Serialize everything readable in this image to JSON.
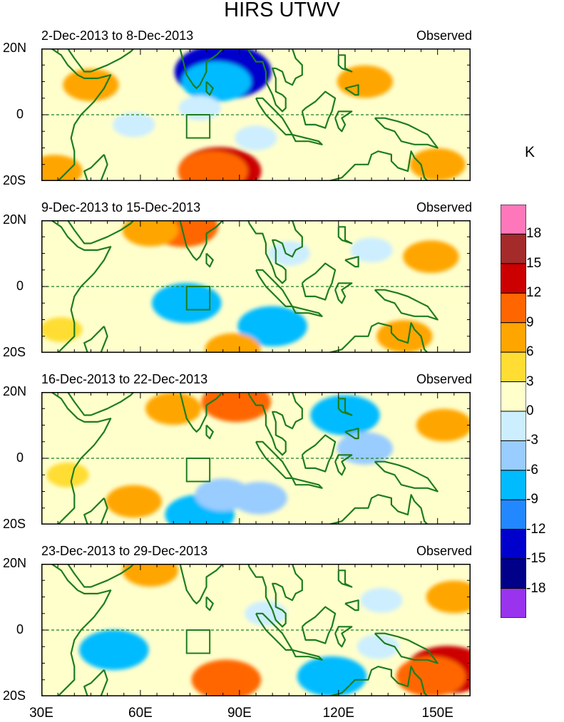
{
  "chart_data": {
    "type": "heatmap",
    "title": "HIRS UTWV",
    "units": "K",
    "xticks": [
      "30E",
      "60E",
      "90E",
      "120E",
      "150E"
    ],
    "yticks": [
      "20N",
      "0",
      "20S"
    ],
    "lon_range": [
      30,
      160
    ],
    "lat_range": [
      -20,
      20
    ],
    "colorbar": {
      "labels": [
        "18",
        "15",
        "12",
        "9",
        "6",
        "3",
        "0",
        "-3",
        "-6",
        "-9",
        "-12",
        "-15",
        "-18"
      ],
      "colors": [
        "#ff77bb",
        "#a52a2a",
        "#cc0000",
        "#ff6600",
        "#ffa500",
        "#ffdd33",
        "#ffffcc",
        "#cceeff",
        "#99ccff",
        "#00bbff",
        "#2288ff",
        "#0000cc",
        "#000088",
        "#9933ee"
      ]
    },
    "box_region": {
      "lon": [
        74,
        81
      ],
      "lat": [
        -7,
        0
      ]
    },
    "panels": [
      {
        "dates": "2-Dec-2013 to 8-Dec-2013",
        "source": "Observed",
        "features": [
          {
            "lon": 85,
            "lat": 13,
            "value": -15
          },
          {
            "lon": 83,
            "lat": 10,
            "value": -9
          },
          {
            "lon": 78,
            "lat": 2,
            "value": -3
          },
          {
            "lon": 58,
            "lat": -3,
            "value": -3
          },
          {
            "lon": 95,
            "lat": -7,
            "value": -3
          },
          {
            "lon": 84,
            "lat": -17,
            "value": 12
          },
          {
            "lon": 82,
            "lat": -17,
            "value": 9
          },
          {
            "lon": 45,
            "lat": 9,
            "value": 6
          },
          {
            "lon": 128,
            "lat": 10,
            "value": 6
          },
          {
            "lon": 150,
            "lat": -15,
            "value": 6
          },
          {
            "lon": 34,
            "lat": -17,
            "value": 6
          }
        ]
      },
      {
        "dates": "9-Dec-2013 to 15-Dec-2013",
        "source": "Observed",
        "features": [
          {
            "lon": 73,
            "lat": 18,
            "value": 9
          },
          {
            "lon": 63,
            "lat": 17,
            "value": 6
          },
          {
            "lon": 74,
            "lat": -5,
            "value": -9
          },
          {
            "lon": 100,
            "lat": -12,
            "value": -9
          },
          {
            "lon": 130,
            "lat": 11,
            "value": -3
          },
          {
            "lon": 105,
            "lat": 10,
            "value": -3
          },
          {
            "lon": 148,
            "lat": 9,
            "value": 6
          },
          {
            "lon": 140,
            "lat": -15,
            "value": 6
          },
          {
            "lon": 36,
            "lat": -13,
            "value": 3
          },
          {
            "lon": 88,
            "lat": -19,
            "value": 6
          }
        ]
      },
      {
        "dates": "16-Dec-2013 to 22-Dec-2013",
        "source": "Observed",
        "features": [
          {
            "lon": 89,
            "lat": 17,
            "value": 9
          },
          {
            "lon": 70,
            "lat": 15,
            "value": 6
          },
          {
            "lon": 122,
            "lat": 13,
            "value": -9
          },
          {
            "lon": 128,
            "lat": 3,
            "value": -6
          },
          {
            "lon": 78,
            "lat": -17,
            "value": -9
          },
          {
            "lon": 85,
            "lat": -11,
            "value": -6
          },
          {
            "lon": 96,
            "lat": -12,
            "value": -6
          },
          {
            "lon": 152,
            "lat": 10,
            "value": 6
          },
          {
            "lon": 58,
            "lat": -13,
            "value": 6
          },
          {
            "lon": 38,
            "lat": -5,
            "value": 3
          }
        ]
      },
      {
        "dates": "23-Dec-2013 to 29-Dec-2013",
        "source": "Observed",
        "features": [
          {
            "lon": 63,
            "lat": 18,
            "value": 6
          },
          {
            "lon": 52,
            "lat": -6,
            "value": -9
          },
          {
            "lon": 118,
            "lat": -14,
            "value": -9
          },
          {
            "lon": 86,
            "lat": -15,
            "value": 9
          },
          {
            "lon": 153,
            "lat": -12,
            "value": 12
          },
          {
            "lon": 148,
            "lat": -14,
            "value": 9
          },
          {
            "lon": 133,
            "lat": 9,
            "value": -3
          },
          {
            "lon": 155,
            "lat": 10,
            "value": 6
          },
          {
            "lon": 98,
            "lat": 5,
            "value": -3
          },
          {
            "lon": 132,
            "lat": -5,
            "value": -3
          }
        ]
      }
    ]
  }
}
